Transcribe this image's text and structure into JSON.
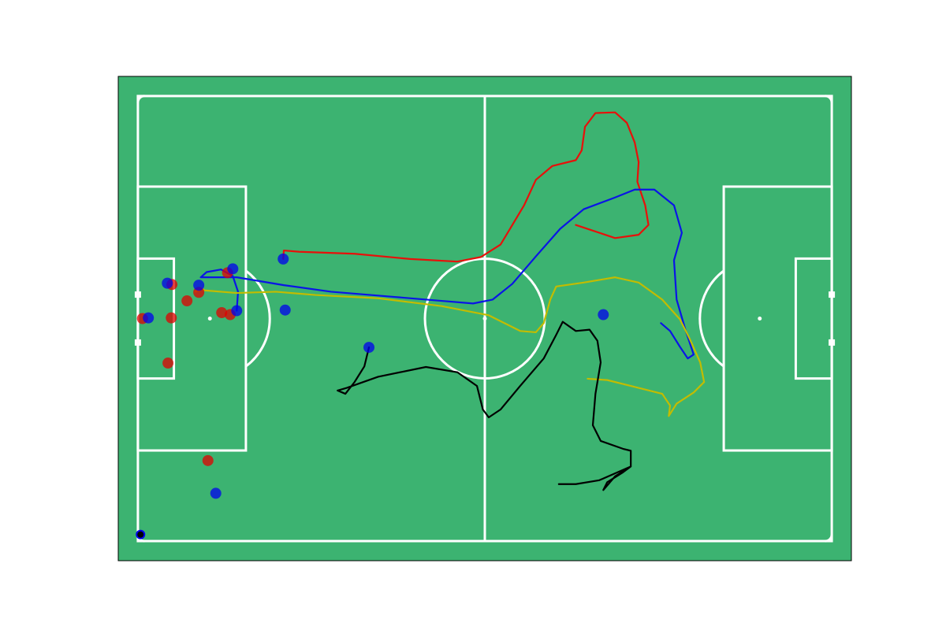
{
  "chart_data": {
    "type": "scatter",
    "xlim": [
      -3,
      109
    ],
    "ylim": [
      -3,
      71
    ],
    "background": "#3cb371",
    "series": [
      {
        "color": "#e00000",
        "opacity": 0.75,
        "x": [
          5.2,
          7.5,
          9.3,
          0.7,
          5.1,
          12.8,
          14.1,
          4.6,
          10.7,
          13.7
        ],
        "values": [
          39.2,
          36.7,
          38.0,
          34.0,
          34.1,
          34.9,
          34.6,
          27.2,
          12.3,
          41.0
        ]
      },
      {
        "color": "#0000ee",
        "opacity": 0.75,
        "x": [
          4.5,
          9.3,
          14.5,
          1.6,
          15.1,
          22.5,
          22.2,
          35.3,
          71.1,
          11.9
        ],
        "values": [
          39.4,
          39.1,
          41.6,
          34.1,
          35.2,
          35.3,
          43.1,
          29.6,
          34.6,
          7.3
        ]
      },
      {
        "color": "#000000",
        "edgecolor": "#0000ee",
        "opacity": 1,
        "x": [
          0.4
        ],
        "values": [
          1.0
        ]
      }
    ],
    "trajectories": [
      {
        "color": "#e8100a",
        "x": [
          22.2,
          22.3,
          24.7,
          33.1,
          41.6,
          48.8,
          52.4,
          55.4,
          57.2,
          59.0,
          60.8,
          63.3,
          66.9,
          67.8,
          68.3,
          69.9,
          72.9,
          74.7,
          75.9,
          76.5,
          76.3,
          77.5,
          78.0,
          76.5,
          72.9,
          69.3,
          66.9
        ],
        "values": [
          43.1,
          44.4,
          44.2,
          43.9,
          43.1,
          42.7,
          43.4,
          45.3,
          48.3,
          51.3,
          55.2,
          57.3,
          58.2,
          59.7,
          63.3,
          65.4,
          65.5,
          63.9,
          60.9,
          57.9,
          54.9,
          51.3,
          48.3,
          46.8,
          46.3,
          47.5,
          48.3
        ]
      },
      {
        "color": "#0a14e6",
        "x": [
          15.1,
          15.3,
          14.5,
          12.7,
          10.5,
          9.6,
          15.1,
          22.3,
          29.5,
          39.2,
          46.4,
          51.2,
          54.2,
          57.2,
          60.8,
          64.5,
          68.1,
          72.9,
          75.9,
          78.9,
          81.9,
          83.1,
          81.9,
          82.3,
          83.7,
          84.9,
          84.0,
          82.8,
          81.3,
          79.9
        ],
        "values": [
          35.2,
          38.1,
          40.5,
          41.5,
          41.1,
          40.3,
          40.3,
          39.1,
          38.1,
          37.3,
          36.7,
          36.3,
          36.9,
          39.3,
          43.5,
          47.7,
          50.7,
          52.5,
          53.7,
          53.7,
          51.3,
          47.1,
          42.9,
          36.9,
          32.1,
          28.5,
          27.9,
          29.7,
          32.1,
          33.3
        ]
      },
      {
        "color": "#c2bc00",
        "x": [
          8.8,
          9.6,
          10.2,
          15.1,
          21.1,
          27.1,
          36.7,
          46.4,
          53.6,
          58.4,
          60.8,
          62.0,
          63.0,
          63.9,
          68.1,
          72.9,
          76.5,
          80.1,
          82.8,
          84.3,
          85.9,
          86.5,
          84.9,
          82.3,
          81.1,
          81.3,
          80.1,
          75.3,
          71.7,
          68.7
        ],
        "values": [
          38.1,
          38.7,
          38.3,
          37.9,
          38.1,
          37.6,
          37.1,
          35.9,
          34.5,
          32.1,
          31.9,
          33.3,
          36.9,
          38.9,
          39.5,
          40.3,
          39.5,
          36.9,
          33.9,
          30.9,
          27.3,
          24.3,
          22.7,
          21.0,
          19.1,
          20.7,
          22.5,
          23.7,
          24.6,
          24.8
        ]
      },
      {
        "color": "#000000",
        "x": [
          35.3,
          34.6,
          33.1,
          31.7,
          30.5,
          31.9,
          36.7,
          44.0,
          48.8,
          51.8,
          52.7,
          53.6,
          55.4,
          58.4,
          62.0,
          63.9,
          64.9,
          66.9,
          69.0,
          70.2,
          70.7,
          69.9,
          69.5,
          70.7,
          74.1,
          75.3,
          75.3,
          72.9,
          71.1,
          71.7,
          74.1,
          75.3,
          70.5,
          66.9,
          64.3
        ],
        "values": [
          29.6,
          26.7,
          24.3,
          22.5,
          23.0,
          23.4,
          25.1,
          26.6,
          25.8,
          23.7,
          20.1,
          18.9,
          20.1,
          23.7,
          27.9,
          31.5,
          33.5,
          32.1,
          32.3,
          30.6,
          27.3,
          22.5,
          17.7,
          15.3,
          14.1,
          13.8,
          11.4,
          9.9,
          7.8,
          9.0,
          10.5,
          11.4,
          9.3,
          8.7,
          8.7
        ]
      }
    ]
  }
}
